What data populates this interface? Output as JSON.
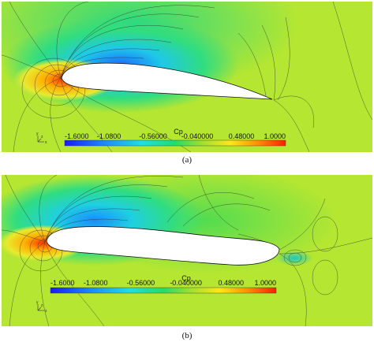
{
  "panels": [
    {
      "id": "a",
      "caption": "(a)",
      "colorbar": {
        "title": "Cp",
        "ticks": [
          "-1.6000",
          "-1.0800",
          "-0.56000",
          "-0.040000",
          "0.48000",
          "1.0000"
        ],
        "stops": [
          {
            "offset": 0.0,
            "color": "#1a1aff"
          },
          {
            "offset": 0.18,
            "color": "#1a8cff"
          },
          {
            "offset": 0.35,
            "color": "#1ee0e0"
          },
          {
            "offset": 0.5,
            "color": "#22dd66"
          },
          {
            "offset": 0.62,
            "color": "#9fe030"
          },
          {
            "offset": 0.75,
            "color": "#ffe619"
          },
          {
            "offset": 0.88,
            "color": "#ff8a00"
          },
          {
            "offset": 1.0,
            "color": "#ff1e00"
          }
        ]
      },
      "axes": {
        "x": "x",
        "y": "y",
        "z": "z"
      }
    },
    {
      "id": "b",
      "caption": "(b)",
      "colorbar": {
        "title": "Cp",
        "ticks": [
          "-1.6000",
          "-1.0800",
          "-0.56000",
          "-0.040000",
          "0.48000",
          "1.0000"
        ],
        "stops": [
          {
            "offset": 0.0,
            "color": "#1a1aff"
          },
          {
            "offset": 0.18,
            "color": "#1a8cff"
          },
          {
            "offset": 0.35,
            "color": "#1ee0e0"
          },
          {
            "offset": 0.5,
            "color": "#22dd66"
          },
          {
            "offset": 0.62,
            "color": "#9fe030"
          },
          {
            "offset": 0.75,
            "color": "#ffe619"
          },
          {
            "offset": 0.88,
            "color": "#ff8a00"
          },
          {
            "offset": 1.0,
            "color": "#ff1e00"
          }
        ]
      },
      "axes": {
        "x": "x",
        "y": "y",
        "z": "z"
      }
    }
  ],
  "colors": {
    "background_field": "#b4e632",
    "suction_blue": "#1a7cff",
    "stagnation_red": "#ff3c00",
    "contour_line": "#2a2a2a",
    "airfoil_fill": "#ffffff"
  }
}
